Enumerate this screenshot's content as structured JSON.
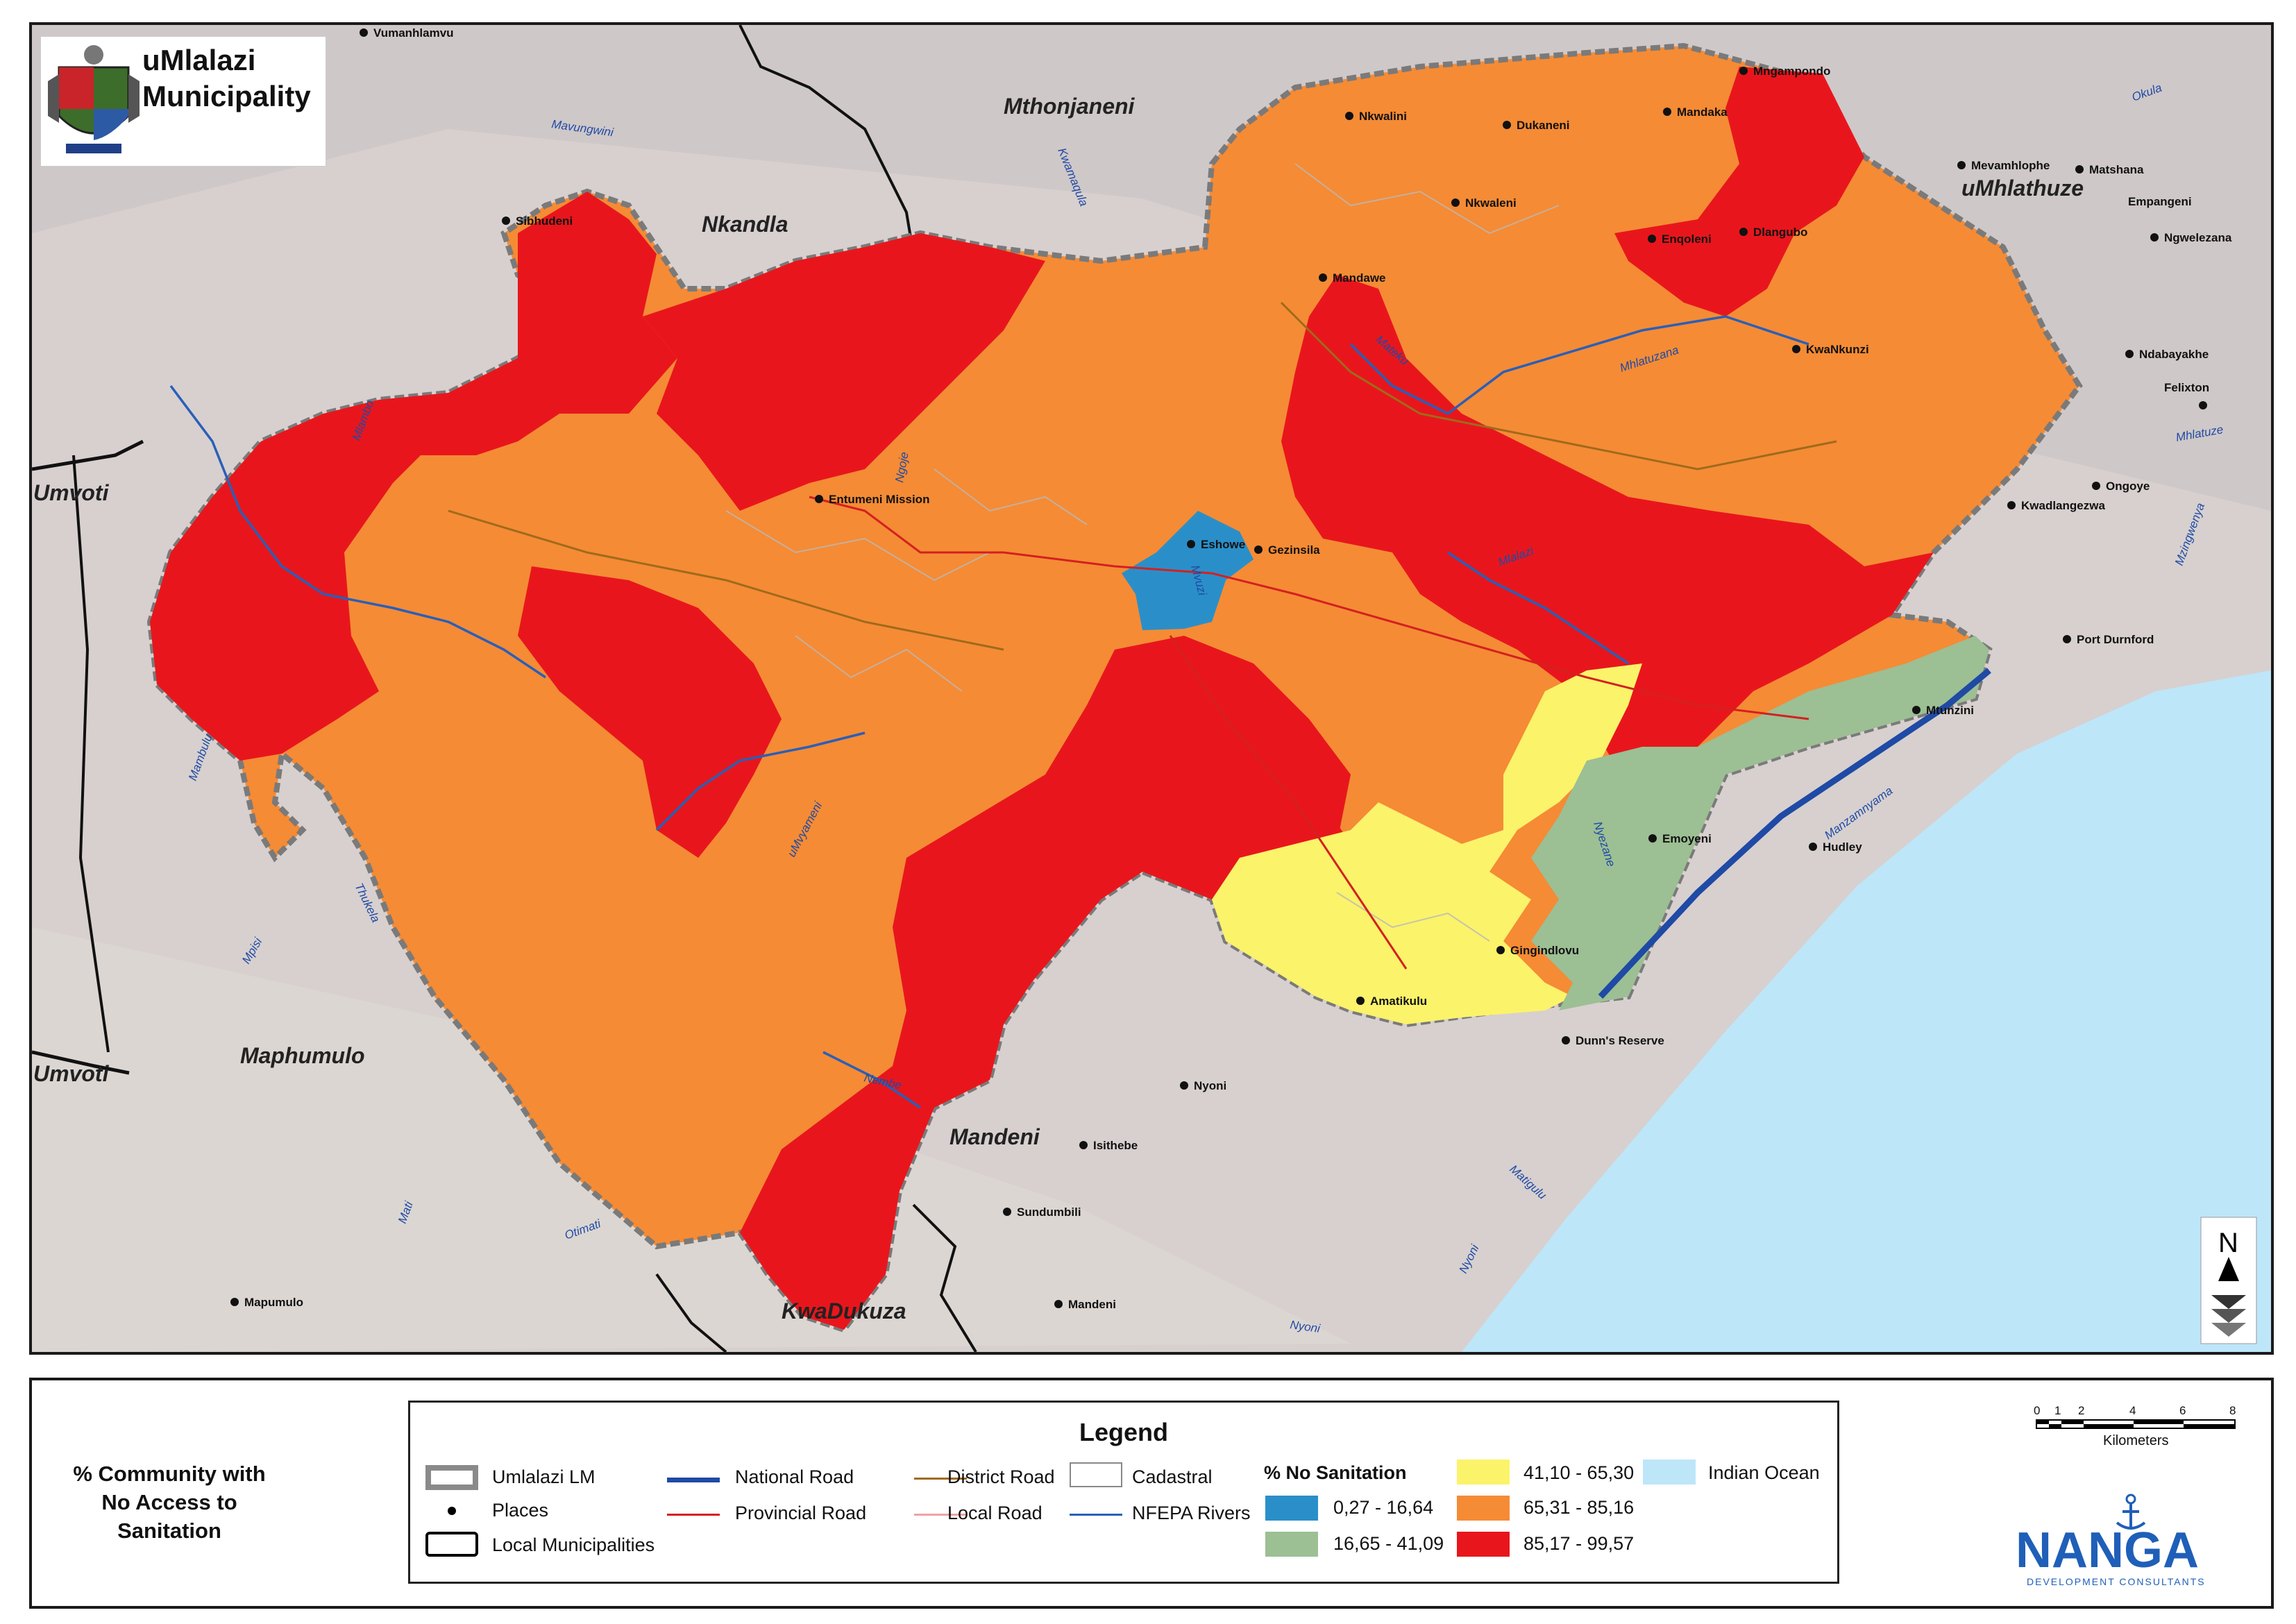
{
  "logo": {
    "title_line1": "uMlalazi",
    "title_line2": "Municipality"
  },
  "map_title_lines": [
    "% Community with",
    "No Access to",
    "Sanitation"
  ],
  "neighbouring_municipalities": [
    {
      "name": "Nkandla"
    },
    {
      "name": "Mthonjaneni"
    },
    {
      "name": "uMhlathuze"
    },
    {
      "name": "Umvoti"
    },
    {
      "name": "Umvoti"
    },
    {
      "name": "Maphumulo"
    },
    {
      "name": "Mandeni"
    },
    {
      "name": "KwaDukuza"
    }
  ],
  "places": [
    "Vumanhlamvu",
    "Sibhudeni",
    "Entumeni Mission",
    "Eshowe",
    "Gezinsila",
    "Nkwalini",
    "Dukaneni",
    "Mandaka",
    "Mngampondo",
    "Nkwaleni",
    "Enqoleni",
    "Dlangubo",
    "Mandawe",
    "KwaNkunzi",
    "Mevamhlophe",
    "Matshana",
    "Empangeni",
    "Ngwelezana",
    "Ndabayakhe",
    "Felixton",
    "Ongoye",
    "Kwadlangezwa",
    "Port Durnford",
    "Mtunzini",
    "Emoyeni",
    "Hudley",
    "Gingindlovu",
    "Amatikulu",
    "Dunn's Reserve",
    "Nyoni",
    "Isithebe",
    "Sundumbili",
    "Mandeni",
    "Mapumulo"
  ],
  "rivers": [
    "Mavungwini",
    "Kwamaqula",
    "Mateku",
    "Mhlatuzana",
    "Mlalazi",
    "Mhlatuze",
    "Mzingwenya",
    "Okula",
    "Ngoje",
    "Mlambo",
    "Mambulu",
    "Mvuzi",
    "Thukela",
    "Mpisi",
    "uMvyameni",
    "Nembe",
    "Otimati",
    "Mati",
    "Matigulu",
    "Nyoni",
    "Manzamnyama",
    "Nyezane",
    "Mlaluze",
    "Nyoni",
    "N",
    "Nyoni"
  ],
  "north_arrow_label": "N",
  "legend": {
    "title": "Legend",
    "items": {
      "umlalazi_lm": "Umlalazi LM",
      "places": "Places",
      "local_municipalities": "Local Municipalities",
      "national_road": "National Road",
      "provincial_road": "Provincial Road",
      "district_road": "District Road",
      "local_road": "Local Road",
      "cadastral": "Cadastral",
      "nfepa_rivers": "NFEPA Rivers",
      "indian_ocean": "Indian Ocean"
    },
    "classes_heading": "% No Sanitation",
    "classes": [
      {
        "range": "0,27 - 16,64",
        "color": "#2a8fc9"
      },
      {
        "range": "16,65 - 41,09",
        "color": "#9cbf94"
      },
      {
        "range": "41,10 - 65,30",
        "color": "#fbf36a"
      },
      {
        "range": "65,31 - 85,16",
        "color": "#f58b35"
      },
      {
        "range": "85,17 - 99,57",
        "color": "#e8161c"
      }
    ],
    "ocean_color": "#bde6f9",
    "road_colors": {
      "national": "#1f4aa5",
      "provincial": "#d42020",
      "district": "#a06a1c",
      "local": "#f0a2a2",
      "river": "#2a5fb8"
    }
  },
  "scale_bar": {
    "ticks": [
      "0",
      "1",
      "2",
      "4",
      "6",
      "8"
    ],
    "unit": "Kilometers"
  },
  "consultant": {
    "name": "NANGA",
    "tagline": "DEVELOPMENT CONSULTANTS"
  }
}
